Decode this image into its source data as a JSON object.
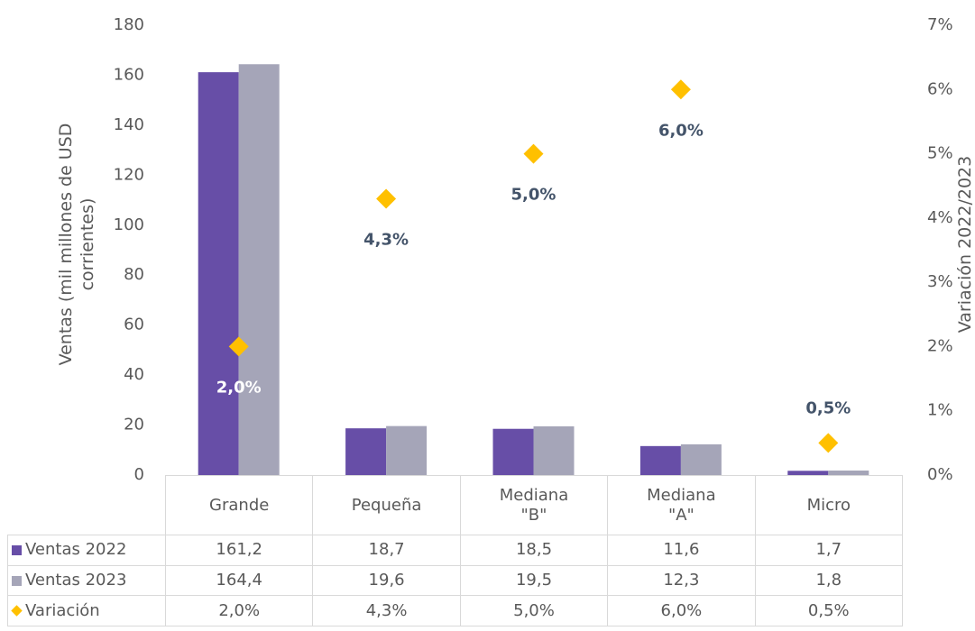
{
  "chart_data": {
    "type": "bar",
    "categories": [
      "Grande",
      "Pequeña",
      "Mediana \"B\"",
      "Mediana \"A\"",
      "Micro"
    ],
    "series": [
      {
        "name": "Ventas 2022",
        "color": "#674ea7",
        "values": [
          161.2,
          18.7,
          18.5,
          11.6,
          1.7
        ],
        "value_labels": [
          "161,2",
          "18,7",
          "18,5",
          "11,6",
          "1,7"
        ]
      },
      {
        "name": "Ventas 2023",
        "color": "#a5a5b8",
        "values": [
          164.4,
          19.6,
          19.5,
          12.3,
          1.8
        ],
        "value_labels": [
          "164,4",
          "19,6",
          "19,5",
          "12,3",
          "1,8"
        ]
      },
      {
        "name": "Variación",
        "type": "scatter",
        "axis": "y2",
        "color": "#ffc000",
        "values": [
          2.0,
          4.3,
          5.0,
          6.0,
          0.5
        ],
        "value_labels": [
          "2,0%",
          "4,3%",
          "5,0%",
          "6,0%",
          "0,5%"
        ]
      }
    ],
    "ylabel": "Ventas (mil millones de USD corrientes)",
    "y2label": "Variación 2022/2023",
    "ylim": [
      0,
      180
    ],
    "yticks": [
      0,
      20,
      40,
      60,
      80,
      100,
      120,
      140,
      160,
      180
    ],
    "y2lim": [
      0,
      7
    ],
    "y2ticks": [
      {
        "value": 0,
        "label": "0%"
      },
      {
        "value": 1,
        "label": "1%"
      },
      {
        "value": 2,
        "label": "2%"
      },
      {
        "value": 3,
        "label": "3%"
      },
      {
        "value": 4,
        "label": "4%"
      },
      {
        "value": 5,
        "label": "5%"
      },
      {
        "value": 6,
        "label": "6%"
      },
      {
        "value": 7,
        "label": "7%"
      }
    ],
    "grid": false,
    "data_table": true
  }
}
